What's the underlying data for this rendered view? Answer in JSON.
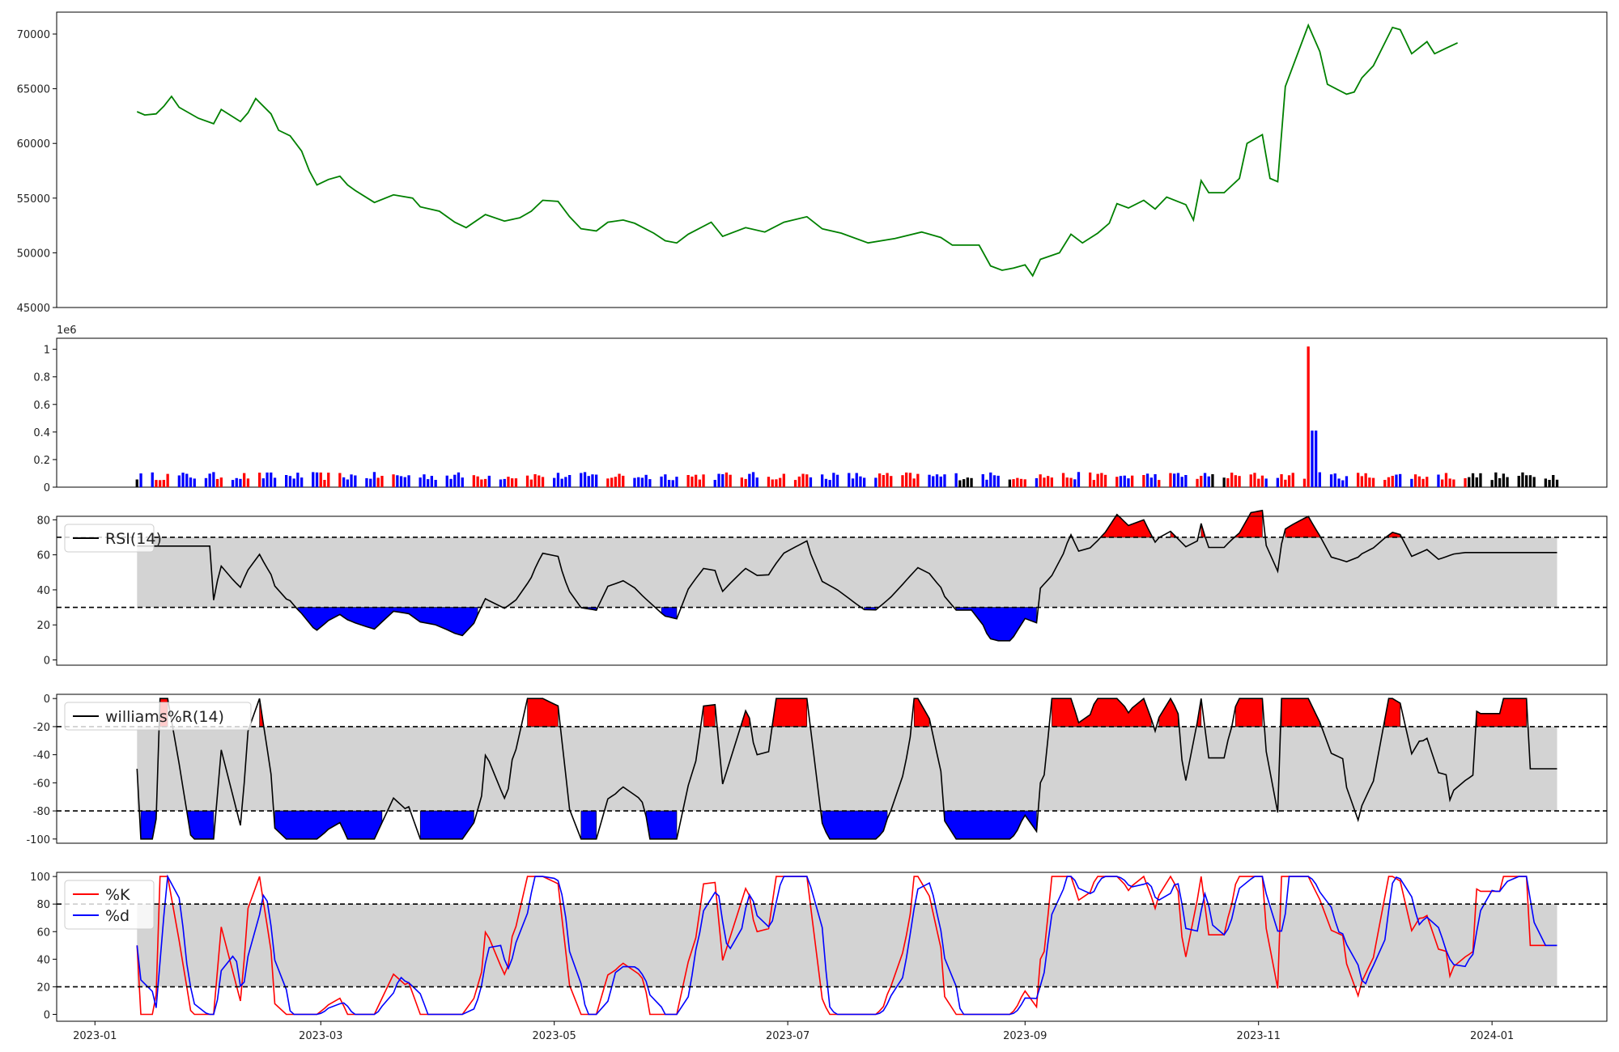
{
  "x_axis": {
    "ticks": [
      {
        "date": "2023-01-01",
        "label": "2023-01"
      },
      {
        "date": "2023-03-01",
        "label": "2023-03"
      },
      {
        "date": "2023-05-01",
        "label": "2023-05"
      },
      {
        "date": "2023-07-01",
        "label": "2023-07"
      },
      {
        "date": "2023-09-01",
        "label": "2023-09"
      },
      {
        "date": "2023-11-01",
        "label": "2023-11"
      },
      {
        "date": "2024-01-01",
        "label": "2024-01"
      }
    ],
    "range": [
      "2022-12-22",
      "2024-01-31"
    ]
  },
  "chart_data": [
    {
      "type": "line",
      "color": "#008000",
      "ylim": [
        45000,
        72000
      ],
      "yticks": [
        45000,
        50000,
        55000,
        60000,
        65000,
        70000
      ],
      "points": [
        [
          "2023-01-12",
          62900
        ],
        [
          "2023-01-14",
          62600
        ],
        [
          "2023-01-17",
          62700
        ],
        [
          "2023-01-19",
          63400
        ],
        [
          "2023-01-21",
          64300
        ],
        [
          "2023-01-23",
          63300
        ],
        [
          "2023-01-28",
          62300
        ],
        [
          "2023-02-01",
          61800
        ],
        [
          "2023-02-03",
          63100
        ],
        [
          "2023-02-08",
          62000
        ],
        [
          "2023-02-10",
          62800
        ],
        [
          "2023-02-12",
          64100
        ],
        [
          "2023-02-16",
          62700
        ],
        [
          "2023-02-18",
          61200
        ],
        [
          "2023-02-21",
          60700
        ],
        [
          "2023-02-24",
          59300
        ],
        [
          "2023-02-26",
          57500
        ],
        [
          "2023-02-28",
          56200
        ],
        [
          "2023-03-03",
          56700
        ],
        [
          "2023-03-06",
          57000
        ],
        [
          "2023-03-08",
          56200
        ],
        [
          "2023-03-10",
          55700
        ],
        [
          "2023-03-15",
          54600
        ],
        [
          "2023-03-20",
          55300
        ],
        [
          "2023-03-25",
          55000
        ],
        [
          "2023-03-27",
          54200
        ],
        [
          "2023-04-01",
          53800
        ],
        [
          "2023-04-05",
          52800
        ],
        [
          "2023-04-08",
          52300
        ],
        [
          "2023-04-13",
          53500
        ],
        [
          "2023-04-18",
          52900
        ],
        [
          "2023-04-22",
          53200
        ],
        [
          "2023-04-25",
          53800
        ],
        [
          "2023-04-28",
          54800
        ],
        [
          "2023-05-02",
          54700
        ],
        [
          "2023-05-05",
          53300
        ],
        [
          "2023-05-08",
          52200
        ],
        [
          "2023-05-12",
          52000
        ],
        [
          "2023-05-15",
          52800
        ],
        [
          "2023-05-19",
          53000
        ],
        [
          "2023-05-22",
          52700
        ],
        [
          "2023-05-27",
          51800
        ],
        [
          "2023-05-30",
          51100
        ],
        [
          "2023-06-02",
          50900
        ],
        [
          "2023-06-05",
          51700
        ],
        [
          "2023-06-11",
          52800
        ],
        [
          "2023-06-14",
          51500
        ],
        [
          "2023-06-20",
          52300
        ],
        [
          "2023-06-25",
          51900
        ],
        [
          "2023-06-30",
          52800
        ],
        [
          "2023-07-06",
          53300
        ],
        [
          "2023-07-10",
          52200
        ],
        [
          "2023-07-15",
          51800
        ],
        [
          "2023-07-22",
          50900
        ],
        [
          "2023-07-29",
          51300
        ],
        [
          "2023-08-05",
          51900
        ],
        [
          "2023-08-10",
          51400
        ],
        [
          "2023-08-13",
          50700
        ],
        [
          "2023-08-20",
          50700
        ],
        [
          "2023-08-23",
          48800
        ],
        [
          "2023-08-26",
          48400
        ],
        [
          "2023-08-29",
          48600
        ],
        [
          "2023-09-01",
          48900
        ],
        [
          "2023-09-03",
          47900
        ],
        [
          "2023-09-05",
          49400
        ],
        [
          "2023-09-10",
          50000
        ],
        [
          "2023-09-13",
          51700
        ],
        [
          "2023-09-16",
          50900
        ],
        [
          "2023-09-20",
          51800
        ],
        [
          "2023-09-23",
          52700
        ],
        [
          "2023-09-25",
          54500
        ],
        [
          "2023-09-28",
          54100
        ],
        [
          "2023-10-02",
          54800
        ],
        [
          "2023-10-05",
          54000
        ],
        [
          "2023-10-08",
          55100
        ],
        [
          "2023-10-13",
          54400
        ],
        [
          "2023-10-15",
          53000
        ],
        [
          "2023-10-17",
          56600
        ],
        [
          "2023-10-19",
          55500
        ],
        [
          "2023-10-23",
          55500
        ],
        [
          "2023-10-27",
          56800
        ],
        [
          "2023-10-29",
          60000
        ],
        [
          "2023-11-02",
          60800
        ],
        [
          "2023-11-04",
          56800
        ],
        [
          "2023-11-06",
          56500
        ],
        [
          "2023-11-08",
          65200
        ],
        [
          "2023-11-14",
          70800
        ],
        [
          "2023-11-17",
          68400
        ],
        [
          "2023-11-19",
          65400
        ],
        [
          "2023-11-24",
          64500
        ],
        [
          "2023-11-26",
          64700
        ],
        [
          "2023-11-28",
          66000
        ],
        [
          "2023-12-01",
          67100
        ],
        [
          "2023-12-06",
          70600
        ],
        [
          "2023-12-08",
          70400
        ],
        [
          "2023-12-11",
          68200
        ],
        [
          "2023-12-15",
          69300
        ],
        [
          "2023-12-17",
          68200
        ],
        [
          "2023-12-20",
          68700
        ],
        [
          "2023-12-23",
          69200
        ]
      ]
    },
    {
      "type": "bar",
      "ylim": [
        0,
        1.08
      ],
      "yticks": [
        0.0,
        0.2,
        0.4,
        0.6,
        0.8,
        1.0
      ],
      "yscale_label": "1e6",
      "colors": {
        "up": "#ff0000",
        "down": "#0000ff",
        "flat": "#000000"
      },
      "bars": []
    },
    {
      "type": "area",
      "legend": [
        "RSI(14)"
      ],
      "ylim": [
        -3,
        82
      ],
      "yticks": [
        0,
        20,
        40,
        60,
        80
      ],
      "bands": [
        30,
        70
      ],
      "points": []
    },
    {
      "type": "area",
      "legend": [
        "williams%R(14)"
      ],
      "ylim": [
        -103,
        3
      ],
      "yticks": [
        -100,
        -80,
        -60,
        -40,
        -20,
        0
      ],
      "bands": [
        -80,
        -20
      ],
      "points": []
    },
    {
      "type": "line",
      "legend": [
        "%K",
        "%d"
      ],
      "series": [
        {
          "name": "%K",
          "color": "#ff0000"
        },
        {
          "name": "%d",
          "color": "#0000ff"
        }
      ],
      "ylim": [
        -5,
        103
      ],
      "yticks": [
        0,
        20,
        40,
        60,
        80,
        100
      ],
      "bands": [
        20,
        80
      ],
      "points": []
    }
  ]
}
